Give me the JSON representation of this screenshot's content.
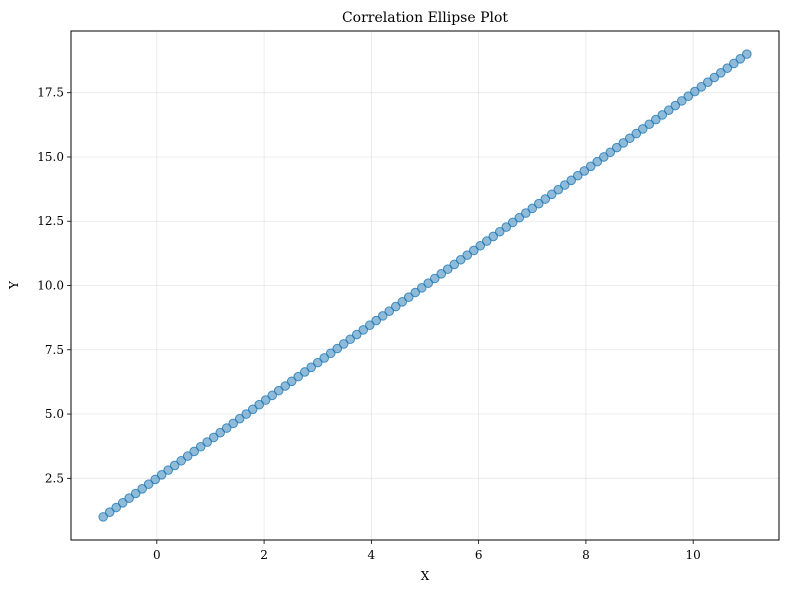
{
  "chart_data": {
    "type": "scatter",
    "title": "Correlation Ellipse Plot",
    "xlabel": "X",
    "ylabel": "Y",
    "xlim": [
      -1.6,
      11.6
    ],
    "ylim": [
      0.1,
      19.9
    ],
    "xticks": [
      0,
      2,
      4,
      6,
      8,
      10
    ],
    "xtick_labels": [
      "0",
      "2",
      "4",
      "6",
      "8",
      "10"
    ],
    "yticks": [
      2.5,
      5.0,
      7.5,
      10.0,
      12.5,
      15.0,
      17.5
    ],
    "ytick_labels": [
      "2.5",
      "5.0",
      "7.5",
      "10.0",
      "12.5",
      "15.0",
      "17.5"
    ],
    "grid": true,
    "marker_color": "#1f77b4",
    "marker_alpha": 0.5,
    "points": {
      "count": 100,
      "x_start": -1.0,
      "x_end": 11.0,
      "slope": 1.5,
      "intercept": 2.5
    }
  }
}
